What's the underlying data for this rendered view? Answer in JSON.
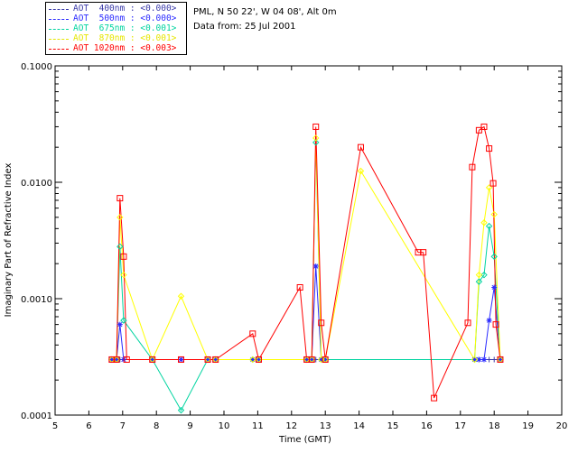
{
  "info": {
    "location": "PML, N 50 22', W 04 08', Alt 0m",
    "date": "Data from: 25 Jul 2001"
  },
  "legend": [
    {
      "label": "AOT  400nm : <0.000>",
      "color": "#3a3aa8"
    },
    {
      "label": "AOT  500nm : <0.000>",
      "color": "#2b2bff"
    },
    {
      "label": "AOT  675nm : <0.001>",
      "color": "#00d4a0"
    },
    {
      "label": "AOT  870nm : <0.001>",
      "color": "#ffff00"
    },
    {
      "label": "AOT 1020nm : <0.003>",
      "color": "#ff0000"
    }
  ],
  "chart_data": {
    "type": "line",
    "title": "",
    "xlabel": "Time (GMT)",
    "ylabel": "Imaginary Part of Refractive Index",
    "xlim": [
      5,
      20
    ],
    "ylim": [
      0.0001,
      0.1
    ],
    "yscale": "log",
    "xticks": [
      "5",
      "6",
      "7",
      "8",
      "9",
      "10",
      "11",
      "12",
      "13",
      "14",
      "15",
      "16",
      "17",
      "18",
      "19",
      "20"
    ],
    "yticks": [
      "0.0001",
      "0.0010",
      "0.0100",
      "0.1000"
    ],
    "series": [
      {
        "name": "AOT  400nm : <0.000>",
        "color": "#3a3aa8",
        "marker": "plus",
        "x": [
          6.68,
          6.82,
          6.92,
          7.03,
          7.88,
          8.73,
          9.52,
          9.75,
          10.85,
          11.03,
          12.45,
          12.6,
          12.72,
          12.88,
          13.0,
          17.42,
          17.55,
          17.7,
          17.85,
          18.0,
          18.18
        ],
        "y": [
          0.0003,
          0.0003,
          0.0003,
          0.0003,
          0.0003,
          0.0003,
          0.0003,
          0.0003,
          0.0003,
          0.0003,
          0.0003,
          0.0003,
          0.0003,
          0.0003,
          0.0003,
          0.0003,
          0.0003,
          0.0003,
          0.0003,
          0.0003,
          0.0003
        ]
      },
      {
        "name": "AOT  500nm : <0.000>",
        "color": "#2b2bff",
        "marker": "star",
        "x": [
          6.68,
          6.82,
          6.92,
          7.03,
          7.88,
          8.73,
          9.52,
          9.75,
          10.85,
          11.03,
          12.45,
          12.6,
          12.72,
          12.88,
          13.0,
          17.42,
          17.55,
          17.7,
          17.85,
          18.0,
          18.18
        ],
        "y": [
          0.0003,
          0.0003,
          0.0006,
          0.0003,
          0.0003,
          0.0003,
          0.0003,
          0.0003,
          0.0003,
          0.0003,
          0.0003,
          0.0003,
          0.0019,
          0.0003,
          0.0003,
          0.0003,
          0.0003,
          0.0003,
          0.00065,
          0.00125,
          0.0003
        ]
      },
      {
        "name": "AOT  675nm : <0.001>",
        "color": "#00d4a0",
        "marker": "diamond",
        "x": [
          6.68,
          6.82,
          6.92,
          7.03,
          7.88,
          8.73,
          9.52,
          9.75,
          10.85,
          11.03,
          12.45,
          12.6,
          12.72,
          12.88,
          13.0,
          17.42,
          17.55,
          17.7,
          17.85,
          18.0,
          18.18
        ],
        "y": [
          0.0003,
          0.0003,
          0.0028,
          0.00065,
          0.0003,
          0.00011,
          0.0003,
          0.0003,
          0.0003,
          0.0003,
          0.0003,
          0.0003,
          0.022,
          0.0003,
          0.0003,
          0.0003,
          0.0014,
          0.0016,
          0.0042,
          0.0023,
          0.0003
        ]
      },
      {
        "name": "AOT  870nm : <0.001>",
        "color": "#ffff00",
        "marker": "diamond",
        "x": [
          6.68,
          6.82,
          6.92,
          7.03,
          7.88,
          8.73,
          9.52,
          9.75,
          10.85,
          11.03,
          12.45,
          12.6,
          12.72,
          12.88,
          13.0,
          14.05,
          17.42,
          17.55,
          17.7,
          17.85,
          18.0,
          18.18
        ],
        "y": [
          0.0003,
          0.0003,
          0.005,
          0.0016,
          0.0003,
          0.00105,
          0.0003,
          0.0003,
          0.0003,
          0.0003,
          0.0003,
          0.0003,
          0.024,
          0.0003,
          0.0003,
          0.0125,
          0.0003,
          0.0016,
          0.0045,
          0.009,
          0.0053,
          0.0003
        ]
      },
      {
        "name": "AOT 1020nm : <0.003>",
        "color": "#ff0000",
        "marker": "square",
        "x": [
          6.68,
          6.82,
          6.92,
          7.03,
          7.12,
          7.88,
          8.73,
          9.52,
          9.75,
          10.85,
          11.03,
          12.25,
          12.45,
          12.6,
          12.72,
          12.88,
          13.0,
          14.05,
          15.75,
          15.9,
          16.22,
          17.22,
          17.35,
          17.55,
          17.7,
          17.85,
          17.97,
          18.05,
          18.18
        ],
        "y": [
          0.0003,
          0.0003,
          0.0073,
          0.0023,
          0.0003,
          0.0003,
          0.0003,
          0.0003,
          0.0003,
          0.0005,
          0.0003,
          0.00125,
          0.0003,
          0.0003,
          0.03,
          0.00062,
          0.0003,
          0.02,
          0.0025,
          0.0025,
          0.00014,
          0.00062,
          0.0135,
          0.028,
          0.03,
          0.0195,
          0.0098,
          0.0006,
          0.0003
        ]
      }
    ]
  }
}
